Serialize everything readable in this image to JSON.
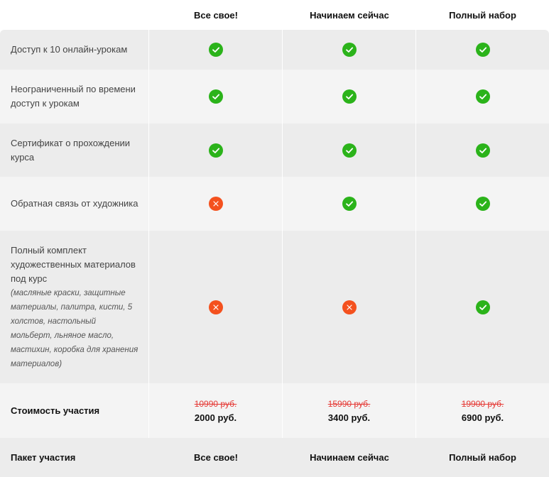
{
  "plans": [
    "Все свое!",
    "Начинаем сейчас",
    "Полный набор"
  ],
  "features": [
    {
      "label": "Доступ к 10 онлайн-урокам",
      "note": "",
      "included": [
        true,
        true,
        true
      ]
    },
    {
      "label": "Неограниченный по времени доступ к урокам",
      "note": "",
      "included": [
        true,
        true,
        true
      ]
    },
    {
      "label": "Сертификат о прохождении курса",
      "note": "",
      "included": [
        true,
        true,
        true
      ]
    },
    {
      "label": "Обратная связь от художника",
      "note": "",
      "included": [
        false,
        true,
        true
      ]
    },
    {
      "label": "Полный комплект художественных материалов под курс",
      "note": "(масляные краски, защитные материалы, палитра, кисти, 5 холстов, настольный мольберт, льняное масло, мастихин, коробка для хранения материалов)",
      "included": [
        false,
        false,
        true
      ]
    }
  ],
  "cost": {
    "label": "Стоимость участия",
    "old_prices": [
      "10990 руб.",
      "15990 руб.",
      "19900 руб."
    ],
    "new_prices": [
      "2000 руб.",
      "3400 руб.",
      "6900 руб."
    ]
  },
  "package": {
    "label": "Пакет участия",
    "buttons": [
      "Все свое!",
      "Начинаем сейчас",
      "Полный набор"
    ]
  },
  "colors": {
    "check": "#2bb31a",
    "cross": "#f4511e",
    "old_price": "#e53935",
    "row_dark": "#ececec",
    "row_light": "#f4f4f4"
  },
  "icons": {
    "yes": "check-circle-icon",
    "no": "cross-circle-icon"
  }
}
